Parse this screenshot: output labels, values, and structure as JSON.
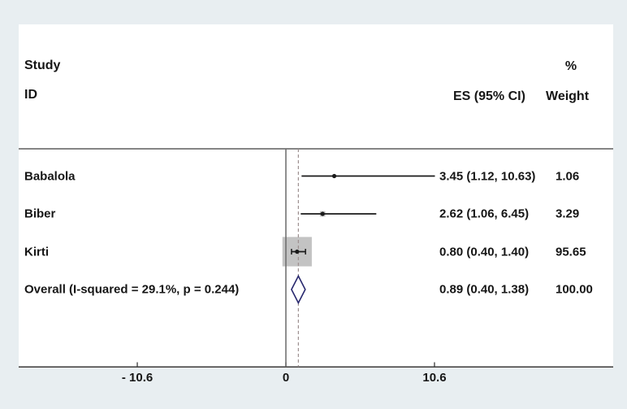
{
  "header": {
    "study_line1": "Study",
    "study_line2": "ID",
    "pct_symbol": "%",
    "es_col": "ES (95% CI)",
    "weight_col": "Weight"
  },
  "chart_data": {
    "type": "forest",
    "x_axis": {
      "ticks": [
        {
          "value": -10.6,
          "label": "- 10.6"
        },
        {
          "value": 0,
          "label": "0"
        },
        {
          "value": 10.6,
          "label": "10.6"
        }
      ],
      "zero_line_value": 0,
      "dashed_line_value": 0.89
    },
    "studies": [
      {
        "id": "Babalola",
        "es": 3.45,
        "ci_lo": 1.12,
        "ci_hi": 10.63,
        "es_label": "3.45 (1.12, 10.63)",
        "weight": 1.06,
        "weight_label": "1.06"
      },
      {
        "id": "Biber",
        "es": 2.62,
        "ci_lo": 1.06,
        "ci_hi": 6.45,
        "es_label": "2.62 (1.06, 6.45)",
        "weight": 3.29,
        "weight_label": "3.29"
      },
      {
        "id": "Kirti",
        "es": 0.8,
        "ci_lo": 0.4,
        "ci_hi": 1.4,
        "es_label": "0.80 (0.40, 1.40)",
        "weight": 95.65,
        "weight_label": "95.65"
      }
    ],
    "overall": {
      "id": "Overall (I-squared = 29.1%, p = 0.244)",
      "es": 0.89,
      "ci_lo": 0.4,
      "ci_hi": 1.38,
      "es_label": "0.89 (0.40, 1.38)",
      "weight": 100.0,
      "weight_label": "100.00"
    }
  },
  "colors": {
    "background": "#e8eef1",
    "panel": "#ffffff",
    "text": "#161616",
    "frame_line": "#3c3c3c",
    "zero_line": "#6a6a6a",
    "dashed_line": "#9c8f8f",
    "ci_line": "#1a1a1a",
    "weight_box": "#c3c3c3",
    "diamond_stroke": "#28286e",
    "diamond_fill": "#ffffff"
  }
}
